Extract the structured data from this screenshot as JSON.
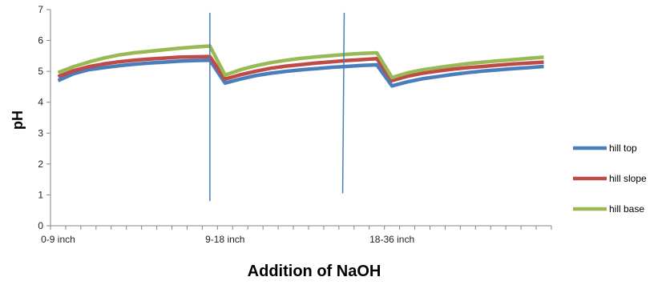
{
  "chart_data": {
    "type": "line",
    "xlabel": "Addition of NaOH",
    "ylabel": "pH",
    "ylim": [
      0,
      7
    ],
    "yticks": [
      "0",
      "1",
      "2",
      "3",
      "4",
      "5",
      "6",
      "7"
    ],
    "x_category_labels": [
      "0-9 inch",
      "9-18 inch",
      "18-36 inch"
    ],
    "points_per_segment": 11,
    "grid": false,
    "legend_position": "right",
    "series": [
      {
        "name": "hill top",
        "color": "#4A7EBB",
        "values": [
          4.7,
          4.92,
          5.05,
          5.12,
          5.18,
          5.23,
          5.27,
          5.3,
          5.33,
          5.35,
          5.36,
          4.62,
          4.75,
          4.86,
          4.94,
          5.0,
          5.05,
          5.09,
          5.13,
          5.16,
          5.19,
          5.21,
          4.53,
          4.66,
          4.76,
          4.83,
          4.9,
          4.96,
          5.01,
          5.05,
          5.09,
          5.12,
          5.16
        ]
      },
      {
        "name": "hill slope",
        "color": "#BE4B48",
        "values": [
          4.83,
          5.02,
          5.15,
          5.24,
          5.31,
          5.36,
          5.4,
          5.43,
          5.46,
          5.47,
          5.48,
          4.75,
          4.89,
          5.0,
          5.1,
          5.17,
          5.22,
          5.27,
          5.31,
          5.35,
          5.38,
          5.41,
          4.7,
          4.84,
          4.94,
          5.01,
          5.07,
          5.12,
          5.16,
          5.2,
          5.24,
          5.27,
          5.3
        ]
      },
      {
        "name": "hill base",
        "color": "#98B954",
        "values": [
          4.96,
          5.15,
          5.3,
          5.43,
          5.53,
          5.6,
          5.65,
          5.7,
          5.75,
          5.79,
          5.82,
          4.88,
          5.05,
          5.18,
          5.28,
          5.36,
          5.42,
          5.47,
          5.51,
          5.55,
          5.58,
          5.6,
          4.8,
          4.95,
          5.05,
          5.12,
          5.19,
          5.25,
          5.3,
          5.34,
          5.38,
          5.42,
          5.46
        ]
      }
    ],
    "annotation_lines": [
      {
        "color": "#4A7EBB",
        "x1": 10,
        "y1": 6.9,
        "x2": 10,
        "y2": 0.8
      },
      {
        "color": "#4A7EBB",
        "x1": 18.85,
        "y1": 6.9,
        "x2": 18.75,
        "y2": 1.05
      }
    ]
  }
}
